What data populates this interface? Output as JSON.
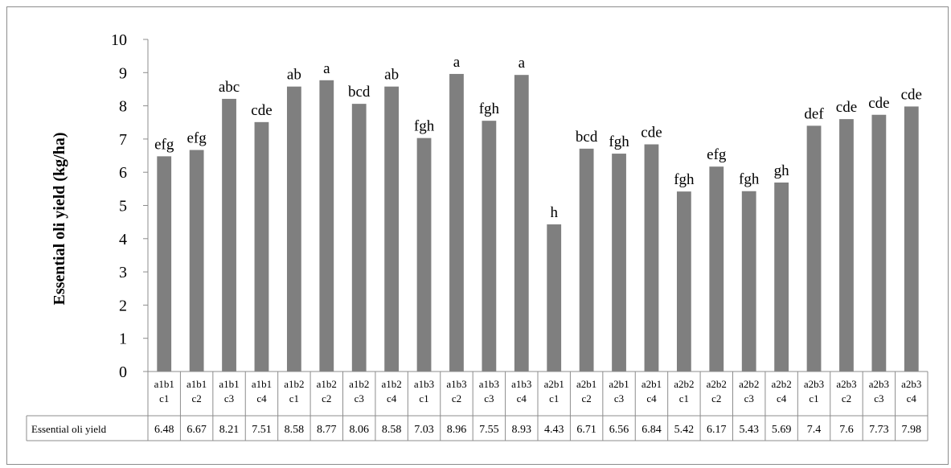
{
  "chart_data": {
    "type": "bar",
    "ylabel": "Essential oli yield (kg/ha)",
    "ylim": [
      0,
      10
    ],
    "yticks": [
      0,
      1,
      2,
      3,
      4,
      5,
      6,
      7,
      8,
      9,
      10
    ],
    "grid": false,
    "legend": "none",
    "bar_color": "#7f7f7f",
    "categories": [
      [
        "a1b1",
        "c1"
      ],
      [
        "a1b1",
        "c2"
      ],
      [
        "a1b1",
        "c3"
      ],
      [
        "a1b1",
        "c4"
      ],
      [
        "a1b2",
        "c1"
      ],
      [
        "a1b2",
        "c2"
      ],
      [
        "a1b2",
        "c3"
      ],
      [
        "a1b2",
        "c4"
      ],
      [
        "a1b3",
        "c1"
      ],
      [
        "a1b3",
        "c2"
      ],
      [
        "a1b3",
        "c3"
      ],
      [
        "a1b3",
        "c4"
      ],
      [
        "a2b1",
        "c1"
      ],
      [
        "a2b1",
        "c2"
      ],
      [
        "a2b1",
        "c3"
      ],
      [
        "a2b1",
        "c4"
      ],
      [
        "a2b2",
        "c1"
      ],
      [
        "a2b2",
        "c2"
      ],
      [
        "a2b2",
        "c3"
      ],
      [
        "a2b2",
        "c4"
      ],
      [
        "a2b3",
        "c1"
      ],
      [
        "a2b3",
        "c2"
      ],
      [
        "a2b3",
        "c3"
      ],
      [
        "a2b3",
        "c4"
      ]
    ],
    "series": [
      {
        "name": "Essential oli yield",
        "values": [
          6.48,
          6.67,
          8.21,
          7.51,
          8.58,
          8.77,
          8.06,
          8.58,
          7.03,
          8.96,
          7.55,
          8.93,
          4.43,
          6.71,
          6.56,
          6.84,
          5.42,
          6.17,
          5.43,
          5.69,
          7.4,
          7.6,
          7.73,
          7.98
        ],
        "value_labels": [
          "6.48",
          "6.67",
          "8.21",
          "7.51",
          "8.58",
          "8.77",
          "8.06",
          "8.58",
          "7.03",
          "8.96",
          "7.55",
          "8.93",
          "4.43",
          "6.71",
          "6.56",
          "6.84",
          "5.42",
          "6.17",
          "5.43",
          "5.69",
          "7.4",
          "7.6",
          "7.73",
          "7.98"
        ]
      }
    ],
    "significance_letters": [
      "efg",
      "efg",
      "abc",
      "cde",
      "ab",
      "a",
      "bcd",
      "ab",
      "fgh",
      "a",
      "fgh",
      "a",
      "h",
      "bcd",
      "fgh",
      "cde",
      "fgh",
      "efg",
      "fgh",
      "gh",
      "def",
      "cde",
      "cde",
      "cde"
    ],
    "data_table": {
      "row_label": "Essential oli yield"
    }
  }
}
